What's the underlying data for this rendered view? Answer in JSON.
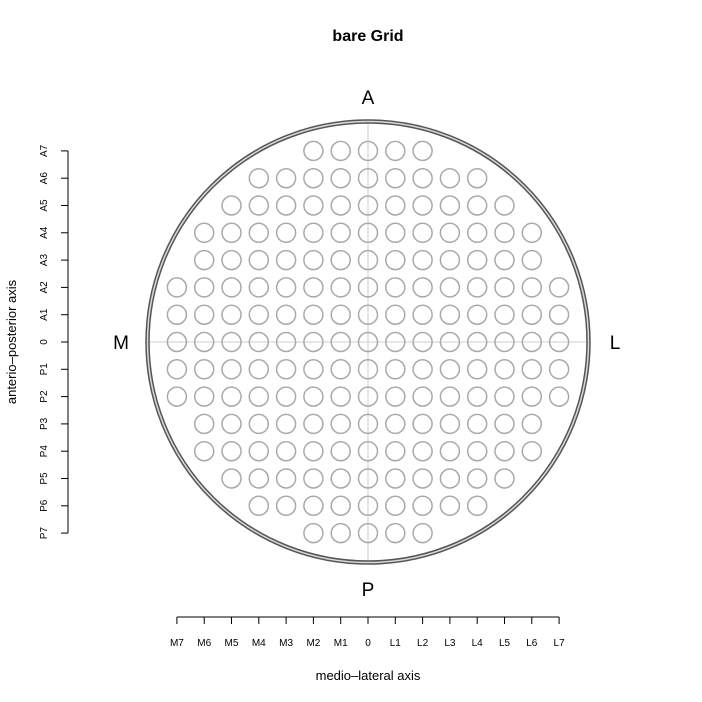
{
  "chart_data": {
    "type": "scatter",
    "title": "bare Grid",
    "xlabel": "medio–lateral axis",
    "ylabel": "anterio–posterior axis",
    "orientation_labels": {
      "top": "A",
      "bottom": "P",
      "left": "M",
      "right": "L"
    },
    "x_ticks": [
      {
        "value": -7,
        "label": "M7"
      },
      {
        "value": -6,
        "label": "M6"
      },
      {
        "value": -5,
        "label": "M5"
      },
      {
        "value": -4,
        "label": "M4"
      },
      {
        "value": -3,
        "label": "M3"
      },
      {
        "value": -2,
        "label": "M2"
      },
      {
        "value": -1,
        "label": "M1"
      },
      {
        "value": 0,
        "label": "0"
      },
      {
        "value": 1,
        "label": "L1"
      },
      {
        "value": 2,
        "label": "L2"
      },
      {
        "value": 3,
        "label": "L3"
      },
      {
        "value": 4,
        "label": "L4"
      },
      {
        "value": 5,
        "label": "L5"
      },
      {
        "value": 6,
        "label": "L6"
      },
      {
        "value": 7,
        "label": "L7"
      }
    ],
    "y_ticks": [
      {
        "value": 7,
        "label": "A7"
      },
      {
        "value": 6,
        "label": "A6"
      },
      {
        "value": 5,
        "label": "A5"
      },
      {
        "value": 4,
        "label": "A4"
      },
      {
        "value": 3,
        "label": "A3"
      },
      {
        "value": 2,
        "label": "A2"
      },
      {
        "value": 1,
        "label": "A1"
      },
      {
        "value": 0,
        "label": "0"
      },
      {
        "value": -1,
        "label": "P1"
      },
      {
        "value": -2,
        "label": "P2"
      },
      {
        "value": -3,
        "label": "P3"
      },
      {
        "value": -4,
        "label": "P4"
      },
      {
        "value": -5,
        "label": "P5"
      },
      {
        "value": -6,
        "label": "P6"
      },
      {
        "value": -7,
        "label": "P7"
      }
    ],
    "xlim": [
      -7,
      7
    ],
    "ylim": [
      -7,
      7
    ],
    "grid_rows": [
      {
        "y": 7,
        "x": [
          -2,
          2
        ]
      },
      {
        "y": 6,
        "x": [
          -4,
          4
        ]
      },
      {
        "y": 5,
        "x": [
          -5,
          5
        ]
      },
      {
        "y": 4,
        "x": [
          -6,
          6
        ]
      },
      {
        "y": 3,
        "x": [
          -6,
          6
        ]
      },
      {
        "y": 2,
        "x": [
          -7,
          7
        ]
      },
      {
        "y": 1,
        "x": [
          -7,
          7
        ]
      },
      {
        "y": 0,
        "x": [
          -7,
          7
        ]
      },
      {
        "y": -1,
        "x": [
          -7,
          7
        ]
      },
      {
        "y": -2,
        "x": [
          -7,
          7
        ]
      },
      {
        "y": -3,
        "x": [
          -6,
          6
        ]
      },
      {
        "y": -4,
        "x": [
          -6,
          6
        ]
      },
      {
        "y": -5,
        "x": [
          -5,
          5
        ]
      },
      {
        "y": -6,
        "x": [
          -4,
          4
        ]
      },
      {
        "y": -7,
        "x": [
          -2,
          2
        ]
      }
    ],
    "colors": {
      "hole_stroke": "#a9a9a9",
      "outer_ring": "#555555",
      "crosshair": "#cccccc",
      "axis": "#000000"
    }
  }
}
